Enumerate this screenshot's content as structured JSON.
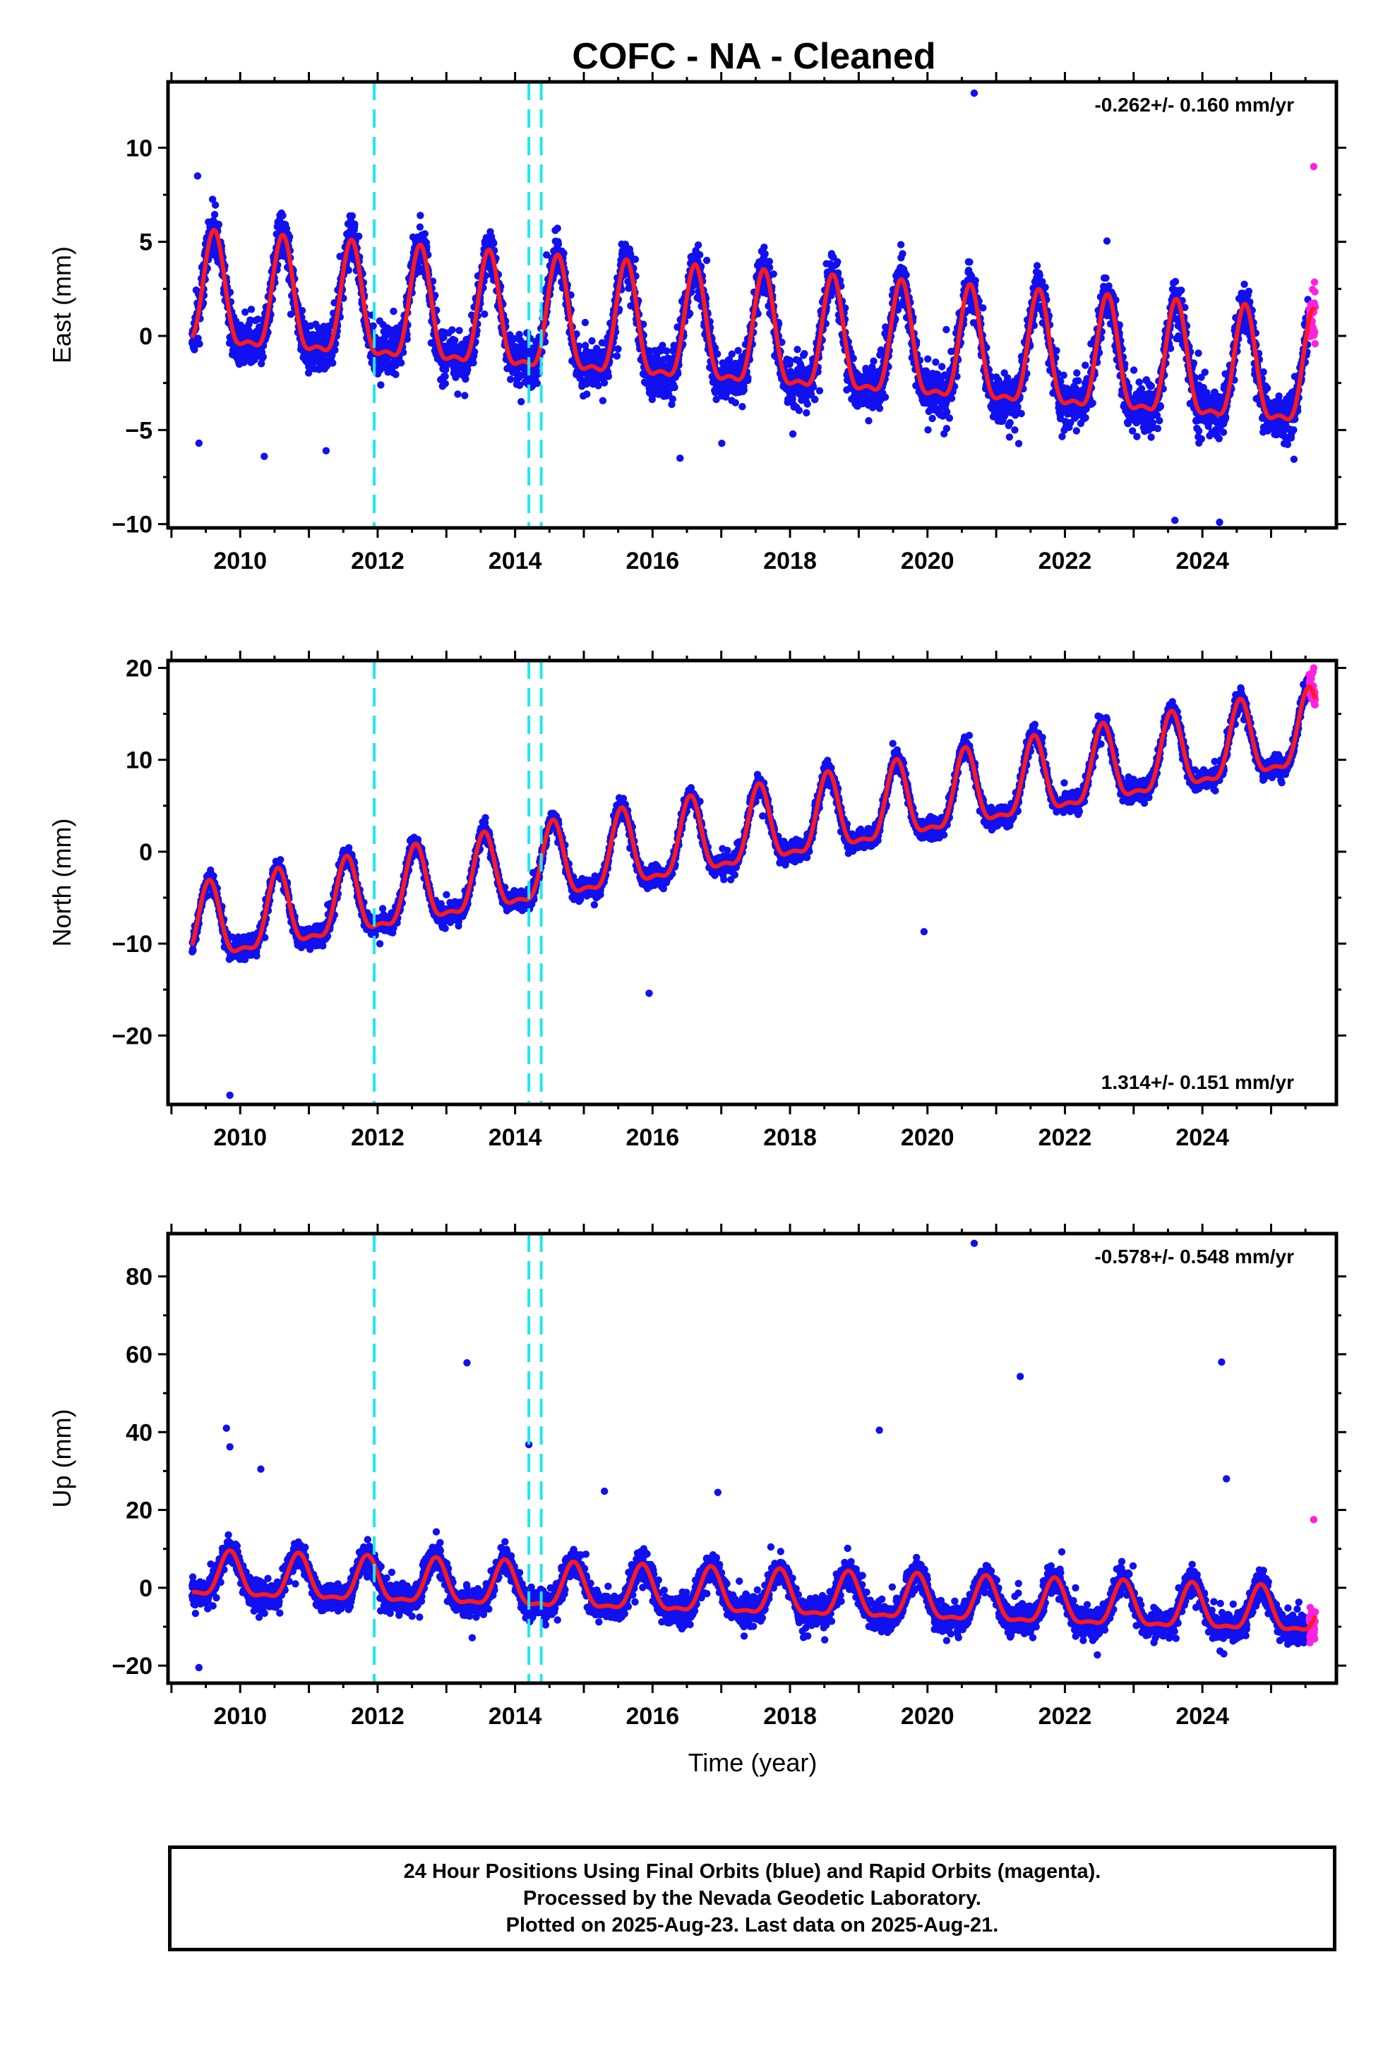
{
  "title": "COFC  - NA - Cleaned",
  "xlabel": "Time (year)",
  "colors": {
    "final_orbits": "#1010f0",
    "rapid_orbits": "#ff20e0",
    "model_fit": "#ff1a1a",
    "equipment_change": "#20e8f0",
    "frame": "#000000"
  },
  "chart_data": [
    {
      "type": "scatter",
      "component": "east",
      "ylabel": "East (mm)",
      "rate": "-0.262+/- 0.160 mm/yr",
      "rate_position": "top-right",
      "xlim": [
        2008.95,
        2025.95
      ],
      "ylim": [
        -10.2,
        13.5
      ],
      "xticks": [
        2010,
        2012,
        2014,
        2016,
        2018,
        2020,
        2022,
        2024
      ],
      "yticks": [
        -10,
        -5,
        0,
        5,
        10
      ],
      "ytick_labels": [
        "−10",
        "−5",
        "0",
        "5",
        "10"
      ],
      "grid": false,
      "series": [
        {
          "values_description": "daily positions, final orbits (blue)",
          "x_range": [
            2009.3,
            2025.55
          ]
        },
        {
          "values_description": "daily positions, rapid orbits (magenta)",
          "x_range": [
            2025.55,
            2025.64
          ]
        }
      ],
      "model": {
        "trend_mm_per_yr": -0.262,
        "offset_mm_at_2009_3": 1.8,
        "annual_amplitude_mm": 2.9,
        "annual_peak_phase_year": 0.62
      },
      "equipment_changes": [
        2011.95,
        2014.2,
        2014.38
      ],
      "outliers": [
        [
          2020.68,
          12.9
        ],
        [
          2009.38,
          8.5
        ],
        [
          2009.4,
          -5.7
        ],
        [
          2010.35,
          -6.4
        ],
        [
          2011.25,
          -6.1
        ],
        [
          2016.4,
          -6.5
        ],
        [
          2023.6,
          -9.8
        ],
        [
          2024.25,
          -9.9
        ],
        [
          2025.62,
          9.0
        ]
      ]
    },
    {
      "type": "scatter",
      "component": "north",
      "ylabel": "North (mm)",
      "rate": "1.314+/- 0.151 mm/yr",
      "rate_position": "bottom-right",
      "xlim": [
        2008.95,
        2025.95
      ],
      "ylim": [
        -27.5,
        20.8
      ],
      "xticks": [
        2010,
        2012,
        2014,
        2016,
        2018,
        2020,
        2022,
        2024
      ],
      "yticks": [
        -20,
        -10,
        0,
        10,
        20
      ],
      "ytick_labels": [
        "−20",
        "−10",
        "0",
        "10",
        "20"
      ],
      "grid": false,
      "series": [
        {
          "values_description": "daily positions, final orbits (blue)",
          "x_range": [
            2009.3,
            2025.55
          ]
        },
        {
          "values_description": "daily positions, rapid orbits (magenta)",
          "x_range": [
            2025.55,
            2025.64
          ]
        }
      ],
      "model": {
        "trend_mm_per_yr": 1.314,
        "offset_mm_at_2009_3": -8.8,
        "annual_amplitude_mm": 4.0,
        "annual_peak_phase_year": 0.55
      },
      "equipment_changes": [
        2011.95,
        2014.2,
        2014.38
      ],
      "outliers": [
        [
          2009.85,
          -26.5
        ],
        [
          2015.95,
          -15.4
        ],
        [
          2019.95,
          -8.7
        ],
        [
          2025.62,
          20.0
        ],
        [
          2025.6,
          17.5
        ]
      ]
    },
    {
      "type": "scatter",
      "component": "up",
      "ylabel": "Up (mm)",
      "rate": "-0.578+/- 0.548 mm/yr",
      "rate_position": "top-right",
      "xlim": [
        2008.95,
        2025.95
      ],
      "ylim": [
        -24.5,
        91
      ],
      "xticks": [
        2010,
        2012,
        2014,
        2016,
        2018,
        2020,
        2022,
        2024
      ],
      "yticks": [
        -20,
        0,
        20,
        40,
        60,
        80
      ],
      "ytick_labels": [
        "−20",
        "0",
        "20",
        "40",
        "60",
        "80"
      ],
      "grid": false,
      "series": [
        {
          "values_description": "daily positions, final orbits (blue)",
          "x_range": [
            2009.3,
            2025.55
          ]
        },
        {
          "values_description": "daily positions, rapid orbits (magenta)",
          "x_range": [
            2025.55,
            2025.64
          ]
        }
      ],
      "model": {
        "trend_mm_per_yr": -0.578,
        "offset_mm_at_2009_3": 2.5,
        "annual_amplitude_mm": 5.5,
        "annual_peak_phase_year": 0.85
      },
      "equipment_changes": [
        2011.95,
        2014.2,
        2014.38
      ],
      "outliers": [
        [
          2020.68,
          88.5
        ],
        [
          2013.3,
          57.8
        ],
        [
          2021.35,
          54.3
        ],
        [
          2024.28,
          58.0
        ],
        [
          2019.3,
          40.5
        ],
        [
          2009.8,
          41.0
        ],
        [
          2009.85,
          36.2
        ],
        [
          2014.2,
          36.8
        ],
        [
          2010.3,
          30.5
        ],
        [
          2024.35,
          28.0
        ],
        [
          2015.3,
          24.8
        ],
        [
          2016.95,
          24.5
        ],
        [
          2009.4,
          -20.5
        ],
        [
          2025.62,
          17.5
        ]
      ]
    }
  ],
  "footer": {
    "line1": "24 Hour Positions Using Final Orbits (blue) and Rapid Orbits (magenta).",
    "line2": "Processed by the Nevada Geodetic Laboratory.",
    "line3": "Plotted on 2025-Aug-23. Last data on 2025-Aug-21."
  }
}
